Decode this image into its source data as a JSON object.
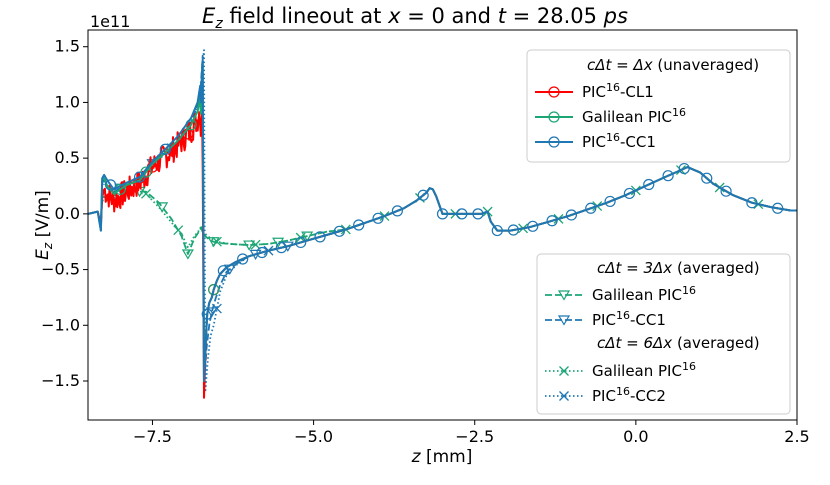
{
  "chart_data": {
    "type": "line",
    "title": "E_z field lineout at x = 0 and t = 28.05 ps",
    "title_parts": {
      "e": "E",
      "e_sub": "z",
      "mid1": " field lineout at ",
      "x": "x",
      "eq1": " = 0 and ",
      "t": "t",
      "eq2": " = 28.05 ",
      "ps": "ps"
    },
    "xlabel": "z [mm]",
    "xlabel_parts": {
      "var": "z",
      "unit": " [mm]"
    },
    "ylabel": "E_z [V/m]",
    "ylabel_parts": {
      "e": "E",
      "sub": "z",
      "unit": " [V/m]"
    },
    "y_multiplier": "1e11",
    "xlim": [
      -8.5,
      2.5
    ],
    "ylim": [
      -1.85,
      1.65
    ],
    "x_ticks": [
      -7.5,
      -5.0,
      -2.5,
      0.0,
      2.5
    ],
    "x_tick_labels": [
      "−7.5",
      "−5.0",
      "−2.5",
      "0.0",
      "2.5"
    ],
    "y_ticks": [
      -1.5,
      -1.0,
      -0.5,
      0.0,
      0.5,
      1.0,
      1.5
    ],
    "y_tick_labels": [
      "−1.5",
      "−1.0",
      "−0.5",
      "0.0",
      "0.5",
      "1.0",
      "1.5"
    ],
    "legend_top": {
      "position": "top-right",
      "heading": "cΔt = Δx (unaveraged)",
      "heading_parts": {
        "lhs": "cΔt",
        "eq": " = ",
        "rhs": "Δx",
        "note": " (unaveraged)"
      },
      "entries": [
        {
          "pre": "PIC",
          "sup": "16",
          "post": "-CL1",
          "label": "PIC16-CL1",
          "color": "#ff0000",
          "marker": "circle",
          "style": "solid"
        },
        {
          "pre": "Galilean PIC",
          "sup": "16",
          "post": "",
          "label": "Galilean PIC16",
          "color": "#1ba674",
          "marker": "circle",
          "style": "solid"
        },
        {
          "pre": "PIC",
          "sup": "16",
          "post": "-CC1",
          "label": "PIC16-CC1",
          "color": "#1f77b4",
          "marker": "circle",
          "style": "solid"
        }
      ]
    },
    "legend_bottom": {
      "position": "bottom-right",
      "groups": [
        {
          "heading": "cΔt = 3Δx (averaged)",
          "heading_parts": {
            "lhs": "cΔt",
            "eq": " = ",
            "rhs": "3Δx",
            "note": " (averaged)"
          },
          "entries": [
            {
              "pre": "Galilean PIC",
              "sup": "16",
              "post": "",
              "label": "Galilean PIC16",
              "color": "#1ba674",
              "marker": "triangle-down",
              "style": "dashed"
            },
            {
              "pre": "PIC",
              "sup": "16",
              "post": "-CC1",
              "label": "PIC16-CC1",
              "color": "#1f77b4",
              "marker": "triangle-down",
              "style": "dashed"
            }
          ]
        },
        {
          "heading": "cΔt = 6Δx (averaged)",
          "heading_parts": {
            "lhs": "cΔt",
            "eq": " = ",
            "rhs": "6Δx",
            "note": " (averaged)"
          },
          "entries": [
            {
              "pre": "Galilean PIC",
              "sup": "16",
              "post": "",
              "label": "Galilean PIC16",
              "color": "#1ba674",
              "marker": "x",
              "style": "dotted"
            },
            {
              "pre": "PIC",
              "sup": "16",
              "post": "-CC2",
              "label": "PIC16-CC2",
              "color": "#1f77b4",
              "marker": "x",
              "style": "dotted"
            }
          ]
        }
      ]
    },
    "common_tail": {
      "x": [
        -6.72,
        -6.65,
        -6.6,
        -6.55,
        -6.5,
        -6.45,
        -6.35,
        -6.2,
        -6.0,
        -5.7,
        -5.4,
        -5.1,
        -4.8,
        -4.5,
        -4.2,
        -3.9,
        -3.6,
        -3.4,
        -3.25,
        -3.2,
        -3.15,
        -3.1,
        -3.0,
        -2.85,
        -2.55,
        -2.4,
        -2.3,
        -2.25,
        -2.15,
        -1.95,
        -1.65,
        -1.35,
        -1.05,
        -0.75,
        -0.45,
        -0.15,
        0.15,
        0.45,
        0.65,
        0.8,
        1.0,
        1.2,
        1.5,
        1.8,
        2.1,
        2.4,
        2.5
      ],
      "y": [
        -1.45,
        -1.1,
        -0.85,
        -0.72,
        -0.62,
        -0.55,
        -0.48,
        -0.43,
        -0.38,
        -0.33,
        -0.29,
        -0.24,
        -0.19,
        -0.14,
        -0.08,
        -0.02,
        0.05,
        0.12,
        0.19,
        0.23,
        0.22,
        0.16,
        0.0,
        0.0,
        0.0,
        0.0,
        0.02,
        -0.07,
        -0.15,
        -0.15,
        -0.12,
        -0.07,
        -0.02,
        0.04,
        0.1,
        0.17,
        0.25,
        0.33,
        0.38,
        0.42,
        0.37,
        0.27,
        0.17,
        0.1,
        0.06,
        0.03,
        0.03
      ]
    },
    "series": [
      {
        "name": "PIC16-CL1 (cΔt = Δx)",
        "color": "#ff0000",
        "style": "solid",
        "marker": "circle",
        "x": [
          -8.5,
          -8.35,
          -8.3,
          -8.28,
          -8.25,
          -8.2,
          -8.1,
          -7.9,
          -7.7,
          -7.5,
          -7.3,
          -7.1,
          -6.9,
          -6.8,
          -6.76,
          -6.75,
          -6.73,
          -6.72,
          -6.7,
          -6.67,
          -6.65,
          -6.62,
          -6.58,
          -6.55,
          -6.5,
          -6.45,
          -6.35,
          -6.2
        ],
        "y": [
          0.0,
          0.02,
          -0.1,
          0.15,
          0.22,
          0.18,
          0.12,
          0.2,
          0.28,
          0.42,
          0.52,
          0.62,
          0.75,
          0.85,
          0.95,
          0.7,
          0.9,
          0.4,
          -1.65,
          -1.1,
          -0.9,
          -0.8,
          -0.75,
          -0.68,
          -0.6,
          -0.54,
          -0.48,
          -0.43
        ],
        "noise": {
          "x_range": [
            -8.25,
            -6.76
          ],
          "amplitude": 0.12
        },
        "marker_x": [
          -7.8,
          -7.5,
          -7.2,
          -6.95,
          -6.55
        ]
      },
      {
        "name": "Galilean PIC16 (cΔt = Δx)",
        "color": "#1ba674",
        "style": "solid",
        "marker": "circle",
        "x": [
          -8.5,
          -8.35,
          -8.3,
          -8.28,
          -8.25,
          -8.2,
          -8.1,
          -7.9,
          -7.7,
          -7.5,
          -7.3,
          -7.1,
          -6.9,
          -6.8,
          -6.76,
          -6.75,
          -6.73,
          -6.72,
          -6.7,
          -6.67,
          -6.65,
          -6.62,
          -6.58,
          -6.55,
          -6.5,
          -6.45,
          -6.35,
          -6.2
        ],
        "y": [
          0.0,
          0.02,
          -0.15,
          0.3,
          0.32,
          0.25,
          0.18,
          0.26,
          0.3,
          0.45,
          0.55,
          0.66,
          0.8,
          0.92,
          1.05,
          0.9,
          1.2,
          1.35,
          -1.5,
          -1.1,
          -0.9,
          -0.8,
          -0.75,
          -0.68,
          -0.6,
          -0.54,
          -0.48,
          -0.43
        ],
        "marker_x": [
          -8.0,
          -7.6,
          -6.9,
          -6.55
        ]
      },
      {
        "name": "PIC16-CC1 (cΔt = Δx)",
        "color": "#1f77b4",
        "style": "solid",
        "marker": "circle",
        "x": [
          -8.5,
          -8.35,
          -8.3,
          -8.28,
          -8.25,
          -8.2,
          -8.1,
          -7.9,
          -7.7,
          -7.5,
          -7.3,
          -7.1,
          -6.9,
          -6.8,
          -6.76,
          -6.75,
          -6.73,
          -6.72,
          -6.7,
          -6.67,
          -6.65,
          -6.62,
          -6.58,
          -6.55,
          -6.5,
          -6.45,
          -6.35,
          -6.2
        ],
        "y": [
          0.0,
          0.02,
          -0.15,
          0.32,
          0.35,
          0.3,
          0.22,
          0.28,
          0.33,
          0.47,
          0.58,
          0.7,
          0.86,
          1.0,
          1.15,
          1.0,
          1.3,
          1.38,
          -1.5,
          -1.1,
          -0.9,
          -0.8,
          -0.75,
          -0.68,
          -0.6,
          -0.54,
          -0.48,
          -0.43
        ],
        "marker_x": [
          -8.15,
          -7.7,
          -7.3,
          -6.65,
          -6.4,
          -6.1,
          -5.8,
          -5.5,
          -5.2,
          -4.9,
          -4.6,
          -4.3,
          -4.0,
          -3.7,
          -3.3,
          -3.0,
          -2.7,
          -2.45,
          -2.15,
          -1.9,
          -1.6,
          -1.3,
          -1.0,
          -0.7,
          -0.4,
          -0.1,
          0.2,
          0.5,
          0.75,
          1.1,
          1.4,
          1.8,
          2.2
        ]
      },
      {
        "name": "Galilean PIC16 (cΔt = 3Δx)",
        "color": "#1ba674",
        "style": "dashed",
        "marker": "triangle-down",
        "x": [
          -8.5,
          -8.35,
          -8.3,
          -8.28,
          -8.2,
          -8.0,
          -7.8,
          -7.6,
          -7.4,
          -7.2,
          -7.05,
          -6.95,
          -6.85,
          -6.78,
          -6.74,
          -6.72,
          -6.6,
          -6.5,
          -6.3,
          -6.0,
          -5.7,
          -5.4,
          -5.1,
          -4.8,
          -4.5
        ],
        "y": [
          0.0,
          0.02,
          -0.1,
          0.15,
          0.15,
          0.18,
          0.2,
          0.2,
          0.1,
          -0.05,
          -0.2,
          -0.36,
          -0.22,
          -0.16,
          -0.12,
          -0.18,
          -0.24,
          -0.26,
          -0.27,
          -0.28,
          -0.27,
          -0.24,
          -0.2,
          -0.16,
          -0.14
        ],
        "marker_x": [
          -7.7,
          -7.35,
          -6.95,
          -6.55,
          -6.0,
          -5.55,
          -5.1
        ]
      },
      {
        "name": "PIC16-CC1 (cΔt = 3Δx)",
        "color": "#1f77b4",
        "style": "dashed",
        "marker": "triangle-down",
        "x": [
          -8.5,
          -8.35,
          -8.3,
          -8.28,
          -8.25,
          -8.2,
          -8.1,
          -7.9,
          -7.7,
          -7.5,
          -7.3,
          -7.1,
          -6.9,
          -6.8,
          -6.75,
          -6.72,
          -6.7,
          -6.66,
          -6.62,
          -6.58,
          -6.52,
          -6.45,
          -6.35,
          -6.2
        ],
        "y": [
          0.0,
          0.02,
          -0.12,
          0.28,
          0.3,
          0.26,
          0.2,
          0.26,
          0.3,
          0.45,
          0.55,
          0.65,
          0.82,
          0.98,
          1.15,
          1.42,
          -1.55,
          -1.2,
          -1.0,
          -0.88,
          -0.76,
          -0.64,
          -0.52,
          -0.45
        ],
        "marker_x": [
          -8.0,
          -7.5,
          -6.58,
          -6.3,
          -5.9,
          -5.4
        ]
      },
      {
        "name": "Galilean PIC16 (cΔt = 6Δx)",
        "color": "#1ba674",
        "style": "dotted",
        "marker": "x",
        "x": [
          -8.5,
          -8.35,
          -8.3,
          -8.28,
          -8.2,
          -8.0,
          -7.8,
          -7.6,
          -7.4,
          -7.2,
          -7.05,
          -6.95,
          -6.85,
          -6.78,
          -6.74,
          -6.72,
          -6.6,
          -6.5,
          -6.3,
          -6.0,
          -5.7,
          -5.4,
          -5.1,
          -4.8,
          -4.5
        ],
        "y": [
          0.0,
          0.02,
          -0.08,
          0.12,
          0.12,
          0.16,
          0.19,
          0.18,
          0.06,
          -0.08,
          -0.18,
          -0.3,
          -0.2,
          -0.15,
          -0.11,
          -0.16,
          -0.22,
          -0.25,
          -0.27,
          -0.28,
          -0.27,
          -0.24,
          -0.2,
          -0.16,
          -0.14
        ],
        "marker_x": [
          -7.6,
          -7.1,
          -6.5,
          -5.9,
          -5.2,
          -4.5,
          -3.9,
          -3.35,
          -2.8,
          -2.3,
          -1.75,
          -1.2,
          -0.6,
          0.0,
          0.7,
          1.3,
          1.9
        ]
      },
      {
        "name": "PIC16-CC2 (cΔt = 6Δx)",
        "color": "#1f77b4",
        "style": "dotted",
        "marker": "x",
        "x": [
          -8.5,
          -8.35,
          -8.3,
          -8.28,
          -8.25,
          -8.2,
          -8.1,
          -7.9,
          -7.7,
          -7.5,
          -7.3,
          -7.1,
          -6.9,
          -6.8,
          -6.74,
          -6.7,
          -6.68,
          -6.64,
          -6.6,
          -6.55,
          -6.5,
          -6.45,
          -6.35,
          -6.2
        ],
        "y": [
          0.0,
          0.02,
          -0.1,
          0.26,
          0.28,
          0.24,
          0.2,
          0.25,
          0.3,
          0.44,
          0.54,
          0.64,
          0.8,
          0.98,
          1.2,
          1.47,
          -1.6,
          -1.3,
          -1.1,
          -1.0,
          -0.85,
          -0.7,
          -0.55,
          -0.46
        ],
        "marker_x": [
          -7.9,
          -7.2,
          -6.5,
          -5.7
        ]
      }
    ]
  }
}
